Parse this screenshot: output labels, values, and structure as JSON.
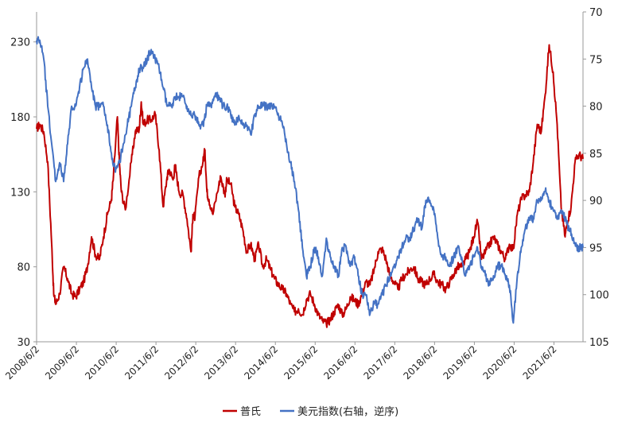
{
  "chart_data": {
    "type": "line",
    "title": "",
    "left_axis": {
      "min": 30,
      "max": 250,
      "ticks": [
        30,
        80,
        130,
        180,
        230
      ]
    },
    "right_axis": {
      "min": 70,
      "max": 105,
      "ticks": [
        70,
        75,
        80,
        85,
        90,
        95,
        100,
        105
      ],
      "inverted": true
    },
    "x_ticks": [
      "2008/6/2",
      "2009/6/2",
      "2010/6/2",
      "2011/6/2",
      "2012/6/2",
      "2013/6/2",
      "2014/6/2",
      "2015/6/2",
      "2016/6/2",
      "2017/6/2",
      "2018/6/2",
      "2019/6/2",
      "2020/6/2",
      "2021/6/2"
    ],
    "x_start": 2008.42,
    "x_end": 2022.15,
    "grid": false,
    "legend_position": "bottom",
    "series": [
      {
        "name": "普氏",
        "axis": "left",
        "color": "#C00000",
        "x": [
          2008.42,
          2008.5,
          2008.6,
          2008.7,
          2008.8,
          2008.85,
          2008.9,
          2009.0,
          2009.1,
          2009.2,
          2009.3,
          2009.4,
          2009.5,
          2009.6,
          2009.7,
          2009.8,
          2009.9,
          2010.0,
          2010.1,
          2010.2,
          2010.3,
          2010.35,
          2010.45,
          2010.5,
          2010.55,
          2010.65,
          2010.8,
          2010.9,
          2011.0,
          2011.05,
          2011.1,
          2011.2,
          2011.3,
          2011.4,
          2011.5,
          2011.6,
          2011.7,
          2011.75,
          2011.85,
          2011.9,
          2012.0,
          2012.1,
          2012.2,
          2012.3,
          2012.35,
          2012.4,
          2012.5,
          2012.6,
          2012.65,
          2012.7,
          2012.75,
          2012.85,
          2013.0,
          2013.05,
          2013.15,
          2013.2,
          2013.3,
          2013.4,
          2013.5,
          2013.6,
          2013.7,
          2013.8,
          2013.9,
          2014.0,
          2014.1,
          2014.2,
          2014.3,
          2014.4,
          2014.5,
          2014.6,
          2014.7,
          2014.8,
          2014.9,
          2015.0,
          2015.1,
          2015.2,
          2015.3,
          2015.4,
          2015.5,
          2015.6,
          2015.7,
          2015.8,
          2015.9,
          2016.0,
          2016.1,
          2016.2,
          2016.3,
          2016.4,
          2016.5,
          2016.6,
          2016.7,
          2016.8,
          2016.9,
          2017.0,
          2017.1,
          2017.2,
          2017.3,
          2017.4,
          2017.5,
          2017.6,
          2017.7,
          2017.8,
          2017.9,
          2018.0,
          2018.1,
          2018.2,
          2018.3,
          2018.4,
          2018.5,
          2018.6,
          2018.7,
          2018.8,
          2018.9,
          2019.0,
          2019.1,
          2019.2,
          2019.3,
          2019.4,
          2019.5,
          2019.6,
          2019.7,
          2019.8,
          2019.9,
          2020.0,
          2020.1,
          2020.2,
          2020.3,
          2020.4,
          2020.5,
          2020.6,
          2020.7,
          2020.8,
          2020.9,
          2021.0,
          2021.1,
          2021.2,
          2021.3,
          2021.4,
          2021.5,
          2021.6,
          2021.7,
          2021.75,
          2021.85,
          2021.95,
          2022.05,
          2022.15
        ],
        "y": [
          172,
          175,
          170,
          150,
          95,
          62,
          55,
          62,
          80,
          72,
          62,
          60,
          65,
          70,
          80,
          100,
          88,
          85,
          100,
          115,
          125,
          140,
          180,
          150,
          130,
          118,
          150,
          170,
          172,
          190,
          175,
          178,
          178,
          182,
          158,
          120,
          140,
          145,
          138,
          148,
          130,
          128,
          112,
          90,
          115,
          113,
          140,
          150,
          158,
          130,
          125,
          115,
          135,
          140,
          128,
          138,
          135,
          120,
          115,
          105,
          90,
          95,
          85,
          95,
          80,
          85,
          78,
          72,
          68,
          65,
          62,
          55,
          50,
          52,
          48,
          58,
          62,
          55,
          48,
          44,
          42,
          45,
          50,
          55,
          48,
          52,
          60,
          58,
          55,
          62,
          70,
          68,
          78,
          90,
          92,
          85,
          74,
          70,
          65,
          72,
          75,
          78,
          80,
          72,
          70,
          68,
          72,
          75,
          70,
          68,
          65,
          70,
          75,
          80,
          80,
          85,
          90,
          100,
          110,
          85,
          90,
          95,
          100,
          95,
          90,
          85,
          95,
          92,
          115,
          125,
          128,
          130,
          150,
          175,
          170,
          195,
          228,
          210,
          175,
          120,
          100,
          110,
          120,
          150,
          155,
          152
        ]
      },
      {
        "name": "美元指数(右轴，逆序)",
        "axis": "right",
        "color": "#4472C4",
        "x": [
          2008.42,
          2008.5,
          2008.6,
          2008.7,
          2008.8,
          2008.9,
          2009.0,
          2009.1,
          2009.2,
          2009.3,
          2009.4,
          2009.5,
          2009.6,
          2009.7,
          2009.8,
          2009.9,
          2010.0,
          2010.1,
          2010.2,
          2010.3,
          2010.4,
          2010.5,
          2010.6,
          2010.7,
          2010.8,
          2010.9,
          2011.0,
          2011.1,
          2011.2,
          2011.3,
          2011.4,
          2011.5,
          2011.6,
          2011.7,
          2011.8,
          2011.9,
          2012.0,
          2012.1,
          2012.2,
          2012.3,
          2012.4,
          2012.5,
          2012.6,
          2012.7,
          2012.8,
          2012.9,
          2013.0,
          2013.1,
          2013.2,
          2013.3,
          2013.4,
          2013.5,
          2013.6,
          2013.7,
          2013.8,
          2013.9,
          2014.0,
          2014.1,
          2014.2,
          2014.3,
          2014.4,
          2014.5,
          2014.6,
          2014.7,
          2014.8,
          2014.9,
          2015.0,
          2015.1,
          2015.2,
          2015.3,
          2015.4,
          2015.5,
          2015.6,
          2015.7,
          2015.8,
          2015.9,
          2016.0,
          2016.1,
          2016.2,
          2016.3,
          2016.4,
          2016.5,
          2016.6,
          2016.7,
          2016.8,
          2016.9,
          2017.0,
          2017.1,
          2017.2,
          2017.3,
          2017.4,
          2017.5,
          2017.6,
          2017.7,
          2017.8,
          2017.9,
          2018.0,
          2018.1,
          2018.2,
          2018.3,
          2018.4,
          2018.5,
          2018.6,
          2018.7,
          2018.8,
          2018.9,
          2019.0,
          2019.1,
          2019.2,
          2019.3,
          2019.4,
          2019.5,
          2019.6,
          2019.7,
          2019.8,
          2019.9,
          2020.0,
          2020.1,
          2020.2,
          2020.3,
          2020.4,
          2020.5,
          2020.6,
          2020.7,
          2020.8,
          2020.9,
          2021.0,
          2021.1,
          2021.2,
          2021.3,
          2021.4,
          2021.5,
          2021.6,
          2021.7,
          2021.8,
          2021.9,
          2022.0,
          2022.05,
          2022.15
        ],
        "y": [
          73,
          73,
          75,
          80,
          84,
          88,
          86,
          88,
          84,
          80,
          80,
          78,
          76,
          75,
          78,
          80,
          80,
          80,
          82,
          85,
          87,
          86,
          84,
          82,
          80,
          78,
          76,
          76,
          75,
          74,
          75,
          76,
          78,
          80,
          80,
          79,
          79,
          79,
          80,
          81,
          81,
          82,
          82,
          80,
          80,
          79,
          79,
          80,
          80,
          81,
          82,
          81,
          82,
          82,
          83,
          81,
          80,
          80,
          80,
          80,
          80,
          81,
          82,
          84,
          86,
          88,
          91,
          95,
          98,
          97,
          95,
          96,
          98,
          94,
          96,
          97,
          98,
          95,
          95,
          97,
          96,
          98,
          100,
          100,
          102,
          101,
          101,
          100,
          99,
          98,
          97,
          96,
          95,
          94,
          94,
          93,
          92,
          93,
          90,
          90,
          91,
          94,
          96,
          96,
          97,
          96,
          95,
          96,
          98,
          97,
          96,
          95,
          97,
          98,
          99,
          98,
          97,
          97,
          98,
          99,
          103,
          98,
          95,
          93,
          92,
          92,
          90,
          90,
          89,
          90,
          91,
          92,
          91,
          92,
          93,
          94,
          95,
          95,
          95
        ]
      }
    ]
  }
}
